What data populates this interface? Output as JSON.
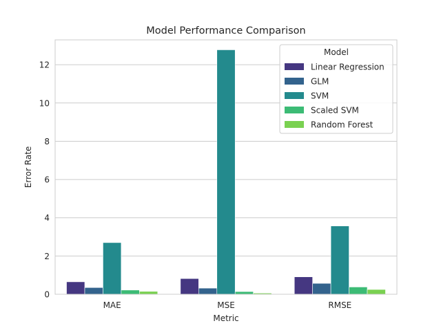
{
  "chart_data": {
    "type": "bar",
    "title": "Model Performance Comparison",
    "xlabel": "Metric",
    "ylabel": "Error Rate",
    "categories": [
      "MAE",
      "MSE",
      "RMSE"
    ],
    "ylim": [
      0,
      13.3
    ],
    "yticks": [
      0,
      2,
      4,
      6,
      8,
      10,
      12
    ],
    "grid": true,
    "legend": {
      "title": "Model",
      "placement": "top-right"
    },
    "series": [
      {
        "name": "Linear Regression",
        "color": "#453781",
        "values": [
          0.65,
          0.82,
          0.91
        ]
      },
      {
        "name": "GLM",
        "color": "#33638d",
        "values": [
          0.35,
          0.32,
          0.57
        ]
      },
      {
        "name": "SVM",
        "color": "#238a8d",
        "values": [
          2.7,
          12.78,
          3.57
        ]
      },
      {
        "name": "Scaled SVM",
        "color": "#3cbb75",
        "values": [
          0.22,
          0.14,
          0.38
        ]
      },
      {
        "name": "Random Forest",
        "color": "#7ad151",
        "values": [
          0.15,
          0.06,
          0.25
        ]
      }
    ]
  }
}
